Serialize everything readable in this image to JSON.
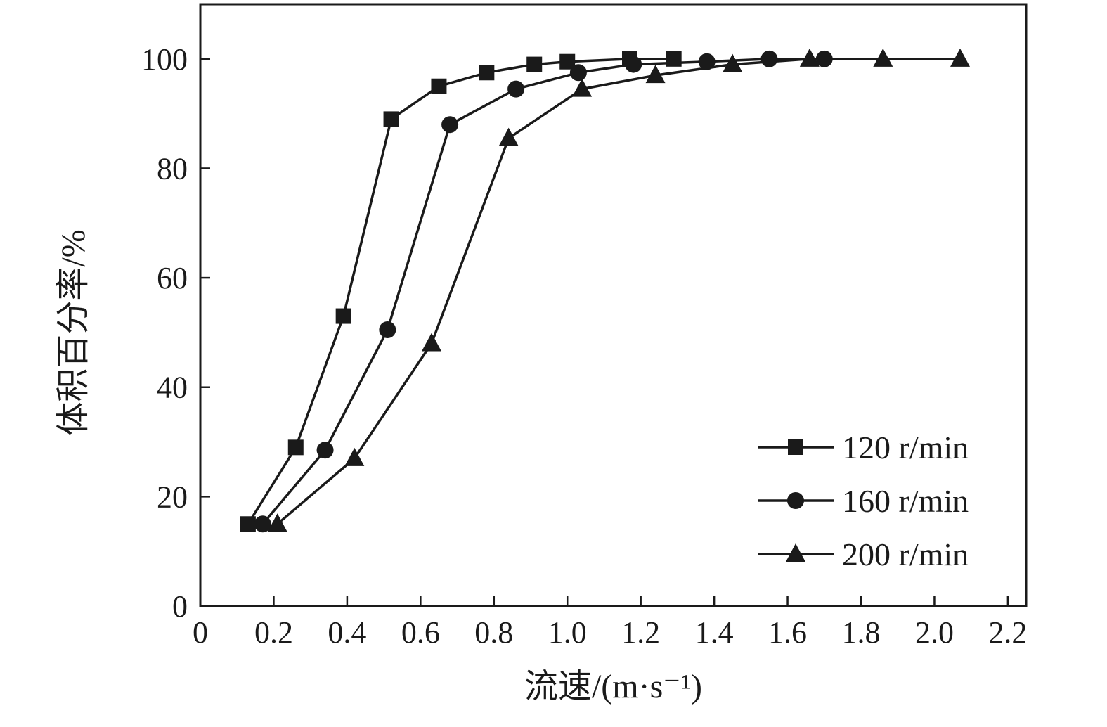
{
  "chart_data": {
    "type": "line",
    "title": "",
    "xlabel": "流速/(m·s⁻¹)",
    "ylabel": "体积百分率/%",
    "xlim": [
      0,
      2.25
    ],
    "ylim": [
      0,
      110
    ],
    "xticks": [
      0,
      0.2,
      0.4,
      0.6,
      0.8,
      1.0,
      1.2,
      1.4,
      1.6,
      1.8,
      2.0,
      2.2
    ],
    "xtick_labels": [
      "0",
      "0.2",
      "0.4",
      "0.6",
      "0.8",
      "1.0",
      "1.2",
      "1.4",
      "1.6",
      "1.8",
      "2.0",
      "2.2"
    ],
    "yticks": [
      0,
      20,
      40,
      60,
      80,
      100
    ],
    "ytick_labels": [
      "0",
      "20",
      "40",
      "60",
      "80",
      "100"
    ],
    "grid": false,
    "legend_position": "lower-right",
    "line_color": "#1a1a1a",
    "series": [
      {
        "name": "120 r/min",
        "marker": "square",
        "x": [
          0.13,
          0.26,
          0.39,
          0.52,
          0.65,
          0.78,
          0.91,
          1.0,
          1.17,
          1.29
        ],
        "y": [
          15,
          29,
          53,
          89,
          95,
          97.5,
          99,
          99.5,
          100,
          100
        ]
      },
      {
        "name": "160 r/min",
        "marker": "circle",
        "x": [
          0.17,
          0.34,
          0.51,
          0.68,
          0.86,
          1.03,
          1.18,
          1.38,
          1.55,
          1.7
        ],
        "y": [
          15,
          28.5,
          50.5,
          88,
          94.5,
          97.5,
          99,
          99.5,
          100,
          100
        ]
      },
      {
        "name": "200 r/min",
        "marker": "triangle",
        "x": [
          0.21,
          0.42,
          0.63,
          0.84,
          1.04,
          1.24,
          1.45,
          1.66,
          1.86,
          2.07
        ],
        "y": [
          15,
          27,
          48,
          85.5,
          94.5,
          97,
          99,
          100,
          100,
          100
        ]
      }
    ]
  }
}
